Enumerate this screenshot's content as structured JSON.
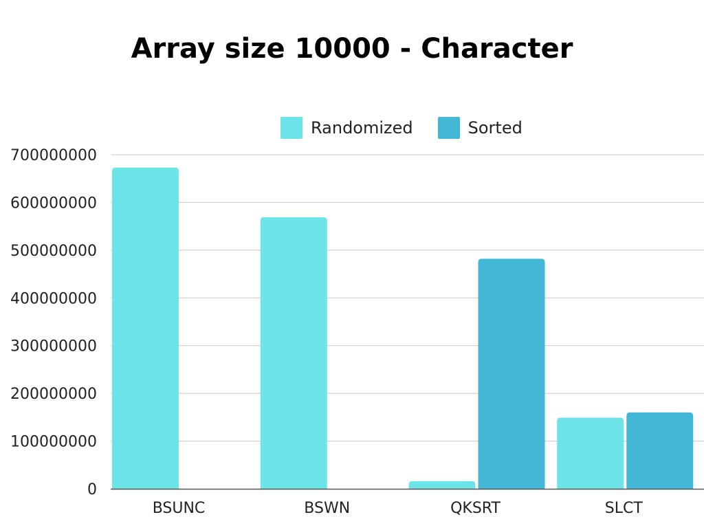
{
  "chart_data": {
    "type": "bar",
    "title": "Array size 10000 - Character",
    "xlabel": "",
    "ylabel": "",
    "categories": [
      "BSUNC",
      "BSWN",
      "QKSRT",
      "SLCT"
    ],
    "series": [
      {
        "name": "Randomized",
        "color": "#6ce4e8",
        "values": [
          673000000,
          569000000,
          16000000,
          149000000
        ]
      },
      {
        "name": "Sorted",
        "color": "#43b8d6",
        "values": [
          0,
          0,
          482000000,
          160000000
        ]
      }
    ],
    "ylim": [
      0,
      700000000
    ],
    "yticks": [
      0,
      100000000,
      200000000,
      300000000,
      400000000,
      500000000,
      600000000,
      700000000
    ],
    "ytick_labels": [
      "0",
      "100000000",
      "200000000",
      "300000000",
      "400000000",
      "500000000",
      "600000000",
      "700000000"
    ],
    "grid": true,
    "legend_position": "top"
  }
}
